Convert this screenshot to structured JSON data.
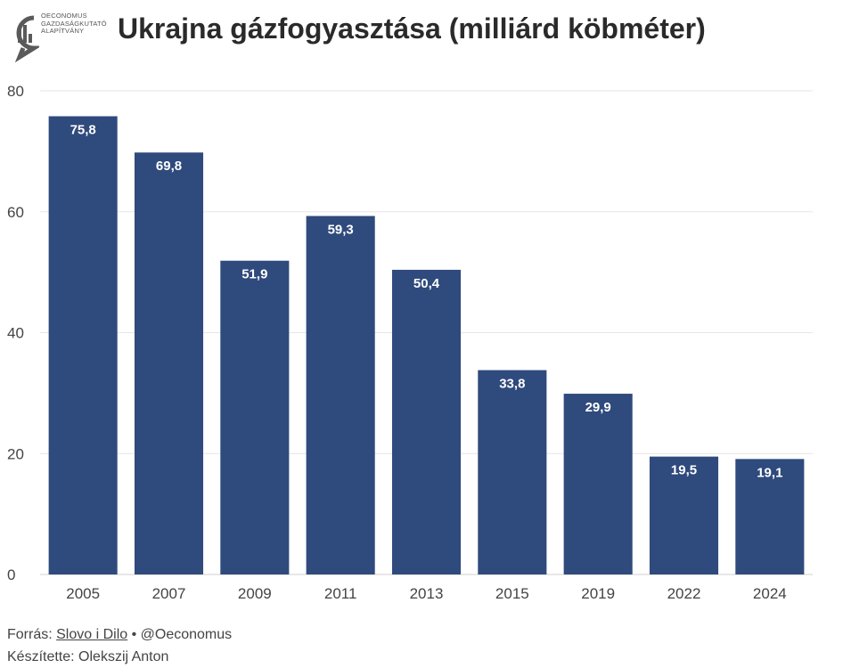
{
  "logo": {
    "lines": [
      "OECONOMUS",
      "GAZDASÁGKUTATÓ",
      "ALAPÍTVÁNY"
    ],
    "icon": "oeconomus-logo-icon",
    "color": "#555555"
  },
  "header": {
    "title": "Ukrajna gázfogyasztása (milliárd köbméter)"
  },
  "chart_data": {
    "type": "bar",
    "title": "Ukrajna gázfogyasztása (milliárd köbméter)",
    "categories": [
      "2005",
      "2007",
      "2009",
      "2011",
      "2013",
      "2015",
      "2019",
      "2022",
      "2024"
    ],
    "values": [
      75.8,
      69.8,
      51.9,
      59.3,
      50.4,
      33.8,
      29.9,
      19.5,
      19.1
    ],
    "data_labels": [
      "75,8",
      "69,8",
      "51,9",
      "59,3",
      "50,4",
      "33,8",
      "29,9",
      "19,5",
      "19,1"
    ],
    "y_ticks": [
      0,
      20,
      40,
      60,
      80
    ],
    "ylim": [
      0,
      80
    ],
    "grid": true,
    "bar_color": "#2f4a7c",
    "label_color": "#ffffff"
  },
  "footer": {
    "source_prefix": "Forrás: ",
    "source_link": "Slovo i Dilo",
    "source_suffix": " • @Oeconomus",
    "author": "Készítette: Olekszij Anton"
  }
}
